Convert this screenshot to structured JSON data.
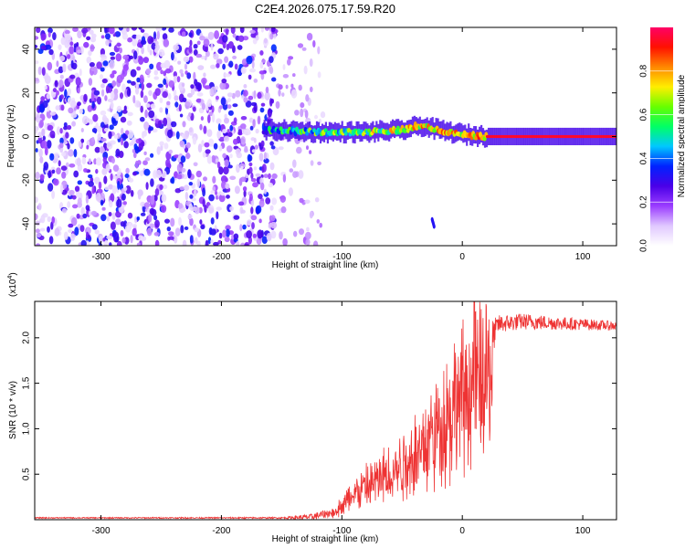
{
  "title": "C2E4.2026.075.17.59.R20",
  "chart_data": [
    {
      "type": "heatmap",
      "name": "spectrogram",
      "xlabel": "Height of straight line (km)",
      "ylabel": "Frequency (Hz)",
      "xlim": [
        -355,
        128
      ],
      "ylim": [
        -50,
        50
      ],
      "xticks": [
        -300,
        -200,
        -100,
        0,
        100
      ],
      "yticks": [
        -40,
        -20,
        0,
        20,
        40
      ],
      "colorbar": {
        "label": "Normalized spectral amplitude",
        "range": [
          0,
          1
        ],
        "ticks": [
          0.0,
          0.2,
          0.4,
          0.6,
          0.8
        ],
        "colors": [
          "#ffffff",
          "#e0c8ff",
          "#9a3cff",
          "#4a00e8",
          "#0022ff",
          "#00c8ff",
          "#00ff66",
          "#66ff00",
          "#ffee00",
          "#ff8800",
          "#ff1100",
          "#ff0066"
        ]
      },
      "features": {
        "noise_region_km": [
          -355,
          -155
        ],
        "signal_start_km": -165,
        "carrier_center_hz": [
          {
            "x": -160,
            "y": 3
          },
          {
            "x": -120,
            "y": 2
          },
          {
            "x": -80,
            "y": 2
          },
          {
            "x": -50,
            "y": 3
          },
          {
            "x": -35,
            "y": 5
          },
          {
            "x": -20,
            "y": 3
          },
          {
            "x": 0,
            "y": 1
          },
          {
            "x": 20,
            "y": 0
          },
          {
            "x": 128,
            "y": 0
          }
        ],
        "carrier_peak_amplitude": 0.95
      }
    },
    {
      "type": "line",
      "name": "snr",
      "xlabel": "Height of straight line (km)",
      "ylabel": "SNR (10 * v/v)",
      "y_multiplier": "(x10",
      "y_multiplier_exp": "4",
      "y_multiplier_close": ")",
      "xlim": [
        -355,
        128
      ],
      "ylim": [
        0,
        2.4
      ],
      "xticks": [
        -300,
        -200,
        -100,
        0,
        100
      ],
      "yticks": [
        0.5,
        1.0,
        1.5,
        2.0
      ],
      "ytick_labels": [
        "0.5",
        "1.0",
        "1.5",
        "2.0"
      ],
      "series": [
        {
          "name": "SNR",
          "color": "#ee3333",
          "envelope": [
            {
              "x": -355,
              "y": 0.02
            },
            {
              "x": -150,
              "y": 0.02
            },
            {
              "x": -125,
              "y": 0.03
            },
            {
              "x": -105,
              "y": 0.09
            },
            {
              "x": -90,
              "y": 0.3
            },
            {
              "x": -70,
              "y": 0.45
            },
            {
              "x": -50,
              "y": 0.65
            },
            {
              "x": -35,
              "y": 0.85
            },
            {
              "x": -20,
              "y": 1.1
            },
            {
              "x": -5,
              "y": 1.45
            },
            {
              "x": 10,
              "y": 1.7
            },
            {
              "x": 20,
              "y": 1.85
            },
            {
              "x": 30,
              "y": 2.15
            },
            {
              "x": 50,
              "y": 2.18
            },
            {
              "x": 80,
              "y": 2.16
            },
            {
              "x": 128,
              "y": 2.13
            }
          ],
          "noise_amplitude": [
            {
              "x": -355,
              "y": 0.006
            },
            {
              "x": -150,
              "y": 0.008
            },
            {
              "x": -110,
              "y": 0.05
            },
            {
              "x": -90,
              "y": 0.22
            },
            {
              "x": -60,
              "y": 0.38
            },
            {
              "x": -30,
              "y": 0.5
            },
            {
              "x": -5,
              "y": 0.55
            },
            {
              "x": 15,
              "y": 0.4
            },
            {
              "x": 30,
              "y": 0.1
            },
            {
              "x": 128,
              "y": 0.05
            }
          ],
          "peak": {
            "x": 10,
            "y": 2.4
          }
        }
      ]
    }
  ]
}
